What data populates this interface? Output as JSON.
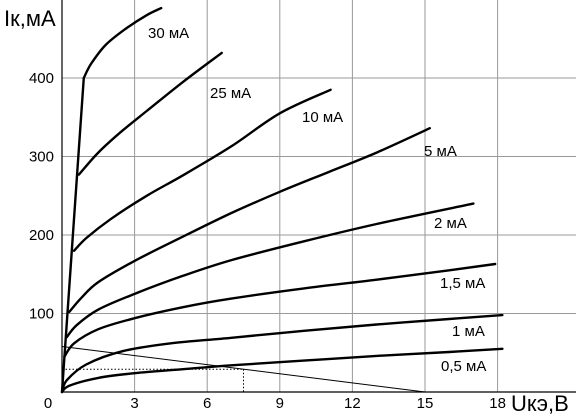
{
  "chart_data": {
    "type": "line",
    "ylabel": "Iк,мА",
    "xlabel": "Uкэ,В",
    "xlim": [
      0,
      19
    ],
    "ylim": [
      0,
      470
    ],
    "grid": true,
    "x_ticks": [
      0,
      3,
      6,
      9,
      12,
      15,
      18
    ],
    "y_ticks": [
      100,
      200,
      300,
      400
    ],
    "x_tick_labels": [
      "0",
      "3",
      "6",
      "9",
      "12",
      "15",
      "18"
    ],
    "y_tick_labels": [
      "100",
      "200",
      "300",
      "400"
    ],
    "series": [
      {
        "name": "0,5 мА",
        "x": [
          0,
          0.3,
          1.5,
          3,
          5,
          7,
          10,
          13,
          16,
          18.2
        ],
        "y": [
          0,
          8,
          18,
          24,
          29,
          34,
          40,
          46,
          51,
          55
        ]
      },
      {
        "name": "1 мА",
        "x": [
          0,
          0.2,
          1,
          2.5,
          4.5,
          7,
          10,
          13,
          16,
          18.2
        ],
        "y": [
          0,
          15,
          35,
          52,
          62,
          69,
          78,
          86,
          93,
          98
        ]
      },
      {
        "name": "1,5 мА",
        "x": [
          0.1,
          0.5,
          1.5,
          3,
          5,
          7,
          10,
          13,
          16,
          17.9
        ],
        "y": [
          45,
          62,
          80,
          94,
          108,
          119,
          132,
          143,
          155,
          163
        ]
      },
      {
        "name": "2 мА",
        "x": [
          0.2,
          0.6,
          1.5,
          3,
          5,
          7,
          10,
          13,
          17
        ],
        "y": [
          70,
          85,
          105,
          125,
          148,
          168,
          192,
          214,
          240
        ]
      },
      {
        "name": "5 мА",
        "x": [
          0.3,
          0.8,
          1.5,
          3,
          5,
          7,
          9,
          11,
          13,
          15.2
        ],
        "y": [
          102,
          120,
          140,
          167,
          198,
          228,
          255,
          280,
          305,
          336
        ]
      },
      {
        "name": "10 мА",
        "x": [
          0.5,
          1,
          2,
          3.5,
          5,
          7,
          9,
          11.1
        ],
        "y": [
          180,
          196,
          220,
          250,
          276,
          313,
          355,
          385
        ]
      },
      {
        "name": "25 мА",
        "x": [
          0.7,
          1.5,
          2.5,
          3.5,
          5,
          6.6
        ],
        "y": [
          277,
          305,
          333,
          358,
          395,
          432
        ]
      },
      {
        "name": "30 мА",
        "x": [
          0.9,
          1.2,
          1.8,
          2.6,
          3.5,
          4.1
        ],
        "y": [
          400,
          418,
          442,
          462,
          480,
          489
        ]
      }
    ],
    "load_line": {
      "x": [
        0,
        15
      ],
      "y": [
        58,
        0
      ]
    },
    "operating_point": {
      "x": 7.5,
      "y": 29
    },
    "saturation_line": {
      "x": [
        0,
        0.9
      ],
      "y": [
        0,
        400
      ]
    },
    "curve_labels": [
      "30 мА",
      "25 мА",
      "10 мА",
      "5 мА",
      "2 мА",
      "1,5 мА",
      "1 мА",
      "0,5 мА"
    ]
  }
}
